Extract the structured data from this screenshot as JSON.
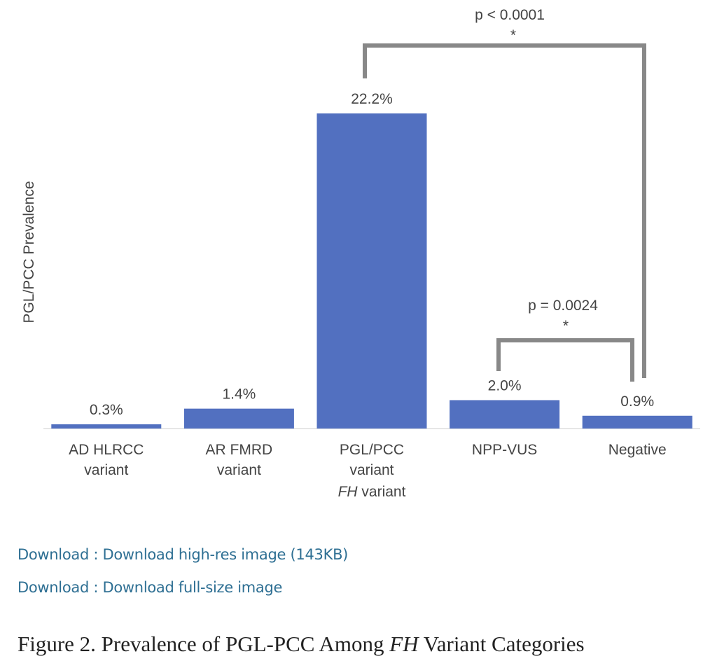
{
  "chart_data": {
    "type": "bar",
    "y_label": "PGL/PCC Prevalence",
    "categories": [
      "AD HLRCC variant",
      "AR FMRD variant",
      "PGL/PCC variant",
      "NPP-VUS",
      "Negative"
    ],
    "group_label": [
      "FH",
      "variant"
    ],
    "values": [
      0.3,
      1.4,
      22.2,
      2.0,
      0.9
    ],
    "value_labels": [
      "0.3%",
      "1.4%",
      "22.2%",
      "2.0%",
      "0.9%"
    ],
    "color": "#5270c0",
    "annotations": [
      {
        "text": "p < 0.0001",
        "mark": "*"
      },
      {
        "text": "p = 0.0024",
        "mark": "*"
      }
    ]
  },
  "links": [
    "Download : Download high-res image (143KB)",
    "Download : Download full-size image"
  ],
  "caption": [
    "Figure 2. Prevalence of PGL-PCC Among ",
    "FH",
    " Variant Categories"
  ]
}
